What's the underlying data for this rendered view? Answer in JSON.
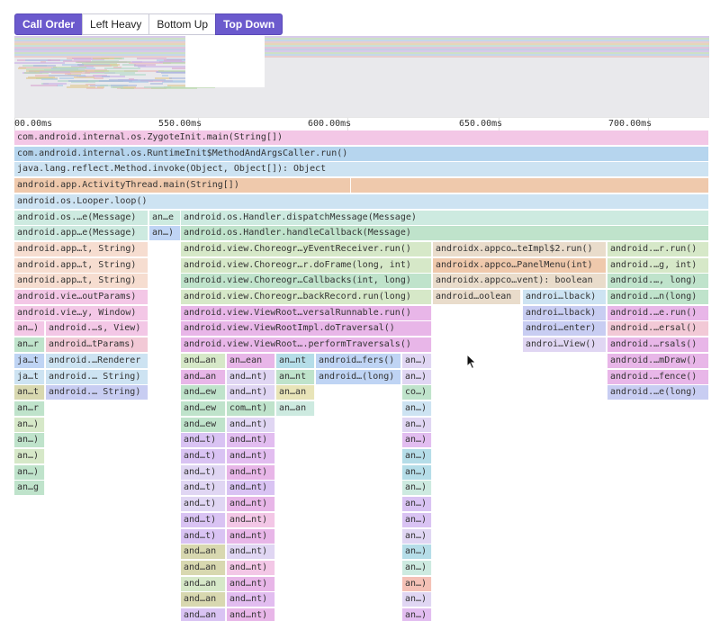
{
  "tabs": [
    {
      "label": "Call Order",
      "active": true
    },
    {
      "label": "Left Heavy",
      "active": false
    },
    {
      "label": "Bottom Up",
      "active": false
    },
    {
      "label": "Top Down",
      "active": true
    }
  ],
  "axis": {
    "ticks": [
      "00.00ms",
      "550.00ms",
      "600.00ms",
      "650.00ms",
      "700.00ms"
    ]
  },
  "palette": {
    "pink": "#f3c7e6",
    "blue": "#b6d5ee",
    "ltblue": "#cde3f2",
    "orange": "#efc9ac",
    "mint": "#cdeae0",
    "green": "#bfe3cb",
    "lime": "#d6e8c8",
    "peach": "#f6ddd0",
    "tan": "#e9dccb",
    "olive": "#d8d8b0",
    "lilac": "#e0d6f3",
    "violet": "#e2bdf0",
    "magenta": "#e8b6e8",
    "purple": "#d9c3f3",
    "cyan": "#b5dde8",
    "navy": "#c8cdf2",
    "salmon": "#f4c1b6",
    "sky": "#bfd4f4",
    "rose": "#f2c9d6",
    "yellow": "#e8e4b8"
  },
  "frames": [
    [
      0,
      0,
      772,
      "pink",
      "com.android.internal.os.ZygoteInit.main(String[])"
    ],
    [
      1,
      0,
      772,
      "blue",
      "com.android.internal.os.RuntimeInit$MethodAndArgsCaller.run()"
    ],
    [
      2,
      0,
      772,
      "ltblue",
      "java.lang.reflect.Method.invoke(Object, Object[]): Object"
    ],
    [
      3,
      0,
      374,
      "orange",
      "android.app.ActivityThread.main(String[])"
    ],
    [
      3,
      374,
      398,
      "orange",
      ""
    ],
    [
      4,
      0,
      772,
      "ltblue",
      "android.os.Looper.loop()"
    ],
    [
      5,
      0,
      149,
      "mint",
      "android.os.…e(Message)"
    ],
    [
      5,
      150,
      35,
      "mint",
      "an…e"
    ],
    [
      5,
      185,
      587,
      "mint",
      "android.os.Handler.dispatchMessage(Message)"
    ],
    [
      6,
      0,
      149,
      "mint",
      "android.app…e(Message)"
    ],
    [
      6,
      150,
      35,
      "sky",
      "an…)"
    ],
    [
      6,
      185,
      587,
      "green",
      "android.os.Handler.handleCallback(Message)"
    ],
    [
      7,
      0,
      149,
      "peach",
      "android.app…t, String)"
    ],
    [
      7,
      185,
      279,
      "lime",
      "android.view.Choreogr…yEventReceiver.run()"
    ],
    [
      7,
      465,
      193,
      "tan",
      "androidx.appco…teImpl$2.run()"
    ],
    [
      7,
      659,
      113,
      "lime",
      "android.…r.run()"
    ],
    [
      8,
      0,
      149,
      "peach",
      "android.app…t, String)"
    ],
    [
      8,
      185,
      279,
      "lime",
      "android.view.Choreogr…r.doFrame(long, int)"
    ],
    [
      8,
      465,
      193,
      "orange",
      "androidx.appco…PanelMenu(int)"
    ],
    [
      8,
      659,
      113,
      "lime",
      "android.…g, int)"
    ],
    [
      9,
      0,
      149,
      "peach",
      "android.app…t, String)"
    ],
    [
      9,
      185,
      279,
      "green",
      "android.view.Choreogr…Callbacks(int, long)"
    ],
    [
      9,
      465,
      193,
      "tan",
      "androidx.appco…vent): boolean"
    ],
    [
      9,
      659,
      113,
      "green",
      "android.…, long)"
    ],
    [
      10,
      0,
      149,
      "pink",
      "android.vie…outParams)"
    ],
    [
      10,
      185,
      279,
      "lime",
      "android.view.Choreogr…backRecord.run(long)"
    ],
    [
      10,
      465,
      98,
      "tan",
      "android…oolean"
    ],
    [
      10,
      565,
      93,
      "ltblue",
      "androi…lback)"
    ],
    [
      10,
      659,
      113,
      "green",
      "android.…n(long)"
    ],
    [
      11,
      0,
      149,
      "pink",
      "android.vie…y, Window)"
    ],
    [
      11,
      185,
      279,
      "magenta",
      "android.view.ViewRoot…versalRunnable.run()"
    ],
    [
      11,
      565,
      93,
      "navy",
      "androi…lback)"
    ],
    [
      11,
      659,
      113,
      "magenta",
      "android.…e.run()"
    ],
    [
      12,
      0,
      34,
      "pink",
      "an…)"
    ],
    [
      12,
      35,
      114,
      "pink",
      "android.…s, View)"
    ],
    [
      12,
      185,
      279,
      "magenta",
      "android.view.ViewRootImpl.doTraversal()"
    ],
    [
      12,
      565,
      93,
      "navy",
      "androi…enter)"
    ],
    [
      12,
      659,
      113,
      "rose",
      "android.…ersal()"
    ],
    [
      13,
      0,
      34,
      "green",
      "an…r"
    ],
    [
      13,
      35,
      114,
      "rose",
      "android…tParams)"
    ],
    [
      13,
      185,
      279,
      "magenta",
      "android.view.ViewRoot….performTraversals()"
    ],
    [
      13,
      565,
      93,
      "lilac",
      "androi…View()"
    ],
    [
      13,
      659,
      113,
      "magenta",
      "android.…rsals()"
    ],
    [
      14,
      0,
      34,
      "sky",
      "ja…t"
    ],
    [
      14,
      35,
      114,
      "ltblue",
      "android.…Renderer"
    ],
    [
      14,
      185,
      50,
      "lime",
      "and…an"
    ],
    [
      14,
      236,
      54,
      "magenta",
      "an…ean"
    ],
    [
      14,
      291,
      43,
      "cyan",
      "an…nt"
    ],
    [
      14,
      335,
      95,
      "sky",
      "android…fers()"
    ],
    [
      14,
      431,
      33,
      "lilac",
      "an…)"
    ],
    [
      14,
      659,
      113,
      "magenta",
      "android.…mDraw()"
    ],
    [
      15,
      0,
      34,
      "ltblue",
      "ja…t"
    ],
    [
      15,
      35,
      114,
      "ltblue",
      "android.… String)"
    ],
    [
      15,
      185,
      50,
      "magenta",
      "and…an"
    ],
    [
      15,
      236,
      54,
      "lilac",
      "and…nt)"
    ],
    [
      15,
      291,
      43,
      "green",
      "an…nt"
    ],
    [
      15,
      335,
      95,
      "sky",
      "android…(long)"
    ],
    [
      15,
      431,
      33,
      "lilac",
      "an…)"
    ],
    [
      15,
      659,
      113,
      "magenta",
      "android.…fence()"
    ],
    [
      16,
      0,
      34,
      "olive",
      "an…t"
    ],
    [
      16,
      35,
      114,
      "navy",
      "android.… String)"
    ],
    [
      16,
      185,
      50,
      "green",
      "and…ew"
    ],
    [
      16,
      236,
      54,
      "lilac",
      "and…nt)"
    ],
    [
      16,
      291,
      43,
      "yellow",
      "an…an"
    ],
    [
      16,
      431,
      33,
      "green",
      "co…)"
    ],
    [
      16,
      659,
      113,
      "navy",
      "android.…e(long)"
    ],
    [
      17,
      0,
      34,
      "green",
      "an…r"
    ],
    [
      17,
      185,
      50,
      "green",
      "and…ew"
    ],
    [
      17,
      236,
      54,
      "green",
      "com…nt)"
    ],
    [
      17,
      291,
      43,
      "mint",
      "an…an"
    ],
    [
      17,
      431,
      33,
      "ltblue",
      "an…)"
    ],
    [
      18,
      0,
      34,
      "lime",
      "an…)"
    ],
    [
      18,
      185,
      50,
      "green",
      "and…ew"
    ],
    [
      18,
      236,
      54,
      "lilac",
      "and…nt)"
    ],
    [
      18,
      431,
      33,
      "lilac",
      "an…)"
    ],
    [
      19,
      0,
      34,
      "green",
      "an…)"
    ],
    [
      19,
      185,
      50,
      "purple",
      "and…t)"
    ],
    [
      19,
      236,
      54,
      "violet",
      "and…nt)"
    ],
    [
      19,
      431,
      33,
      "violet",
      "an…)"
    ],
    [
      20,
      0,
      34,
      "lime",
      "an…)"
    ],
    [
      20,
      185,
      50,
      "purple",
      "and…t)"
    ],
    [
      20,
      236,
      54,
      "violet",
      "and…nt)"
    ],
    [
      20,
      431,
      33,
      "cyan",
      "an…)"
    ],
    [
      21,
      0,
      34,
      "green",
      "an…)"
    ],
    [
      21,
      185,
      50,
      "lilac",
      "and…t)"
    ],
    [
      21,
      236,
      54,
      "magenta",
      "and…nt)"
    ],
    [
      21,
      431,
      33,
      "cyan",
      "an…)"
    ],
    [
      22,
      0,
      34,
      "green",
      "an…g"
    ],
    [
      22,
      185,
      50,
      "lilac",
      "and…t)"
    ],
    [
      22,
      236,
      54,
      "purple",
      "and…nt)"
    ],
    [
      22,
      431,
      33,
      "mint",
      "an…)"
    ],
    [
      23,
      185,
      50,
      "lilac",
      "and…t)"
    ],
    [
      23,
      236,
      54,
      "magenta",
      "and…nt)"
    ],
    [
      23,
      431,
      33,
      "purple",
      "an…)"
    ],
    [
      24,
      185,
      50,
      "purple",
      "and…t)"
    ],
    [
      24,
      236,
      54,
      "pink",
      "and…nt)"
    ],
    [
      24,
      431,
      33,
      "purple",
      "an…)"
    ],
    [
      25,
      185,
      50,
      "purple",
      "and…t)"
    ],
    [
      25,
      236,
      54,
      "magenta",
      "and…nt)"
    ],
    [
      25,
      431,
      33,
      "lilac",
      "an…)"
    ],
    [
      26,
      185,
      50,
      "olive",
      "and…an"
    ],
    [
      26,
      236,
      54,
      "lilac",
      "and…nt)"
    ],
    [
      26,
      431,
      33,
      "cyan",
      "an…)"
    ],
    [
      27,
      185,
      50,
      "olive",
      "and…an"
    ],
    [
      27,
      236,
      54,
      "pink",
      "and…nt)"
    ],
    [
      27,
      431,
      33,
      "mint",
      "an…)"
    ],
    [
      28,
      185,
      50,
      "lime",
      "and…an"
    ],
    [
      28,
      236,
      54,
      "magenta",
      "and…nt)"
    ],
    [
      28,
      431,
      33,
      "salmon",
      "an…)"
    ],
    [
      29,
      185,
      50,
      "olive",
      "and…an"
    ],
    [
      29,
      236,
      54,
      "violet",
      "and…nt)"
    ],
    [
      29,
      431,
      33,
      "lilac",
      "an…)"
    ],
    [
      30,
      185,
      50,
      "purple",
      "and…an"
    ],
    [
      30,
      236,
      54,
      "magenta",
      "and…nt)"
    ],
    [
      30,
      431,
      33,
      "violet",
      "an…)"
    ]
  ],
  "minimap_colors": [
    "#c9b0e8",
    "#b7d9a8",
    "#a8c8e8",
    "#e8b8b8",
    "#e0c890",
    "#b0d8c8",
    "#d8a8d0",
    "#a8b8e0"
  ]
}
